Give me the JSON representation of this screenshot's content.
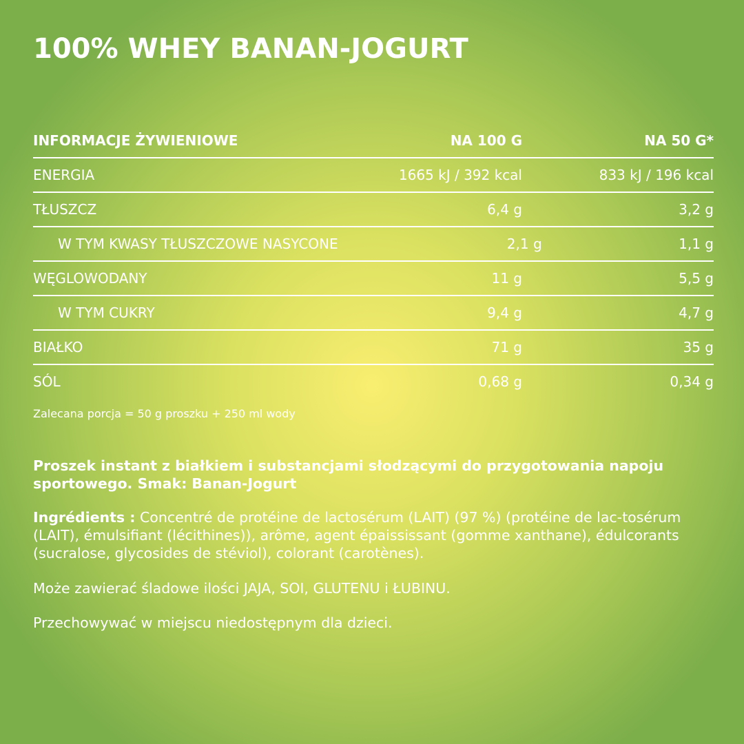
{
  "title": "100% WHEY BANAN-JOGURT",
  "table": {
    "headers": [
      "INFORMACJE ŻYWIENIOWE",
      "NA 100 G",
      "NA 50 G*"
    ],
    "rows": [
      {
        "label": "ENERGIA",
        "per100": "1665 kJ / 392 kcal",
        "per50": "833 kJ / 196 kcal",
        "sub": false
      },
      {
        "label": "TŁUSZCZ",
        "per100": "6,4 g",
        "per50": "3,2 g",
        "sub": false
      },
      {
        "label": "W TYM KWASY TŁUSZCZOWE NASYCONE",
        "per100": "2,1 g",
        "per50": "1,1 g",
        "sub": true
      },
      {
        "label": "WĘGLOWODANY",
        "per100": "11 g",
        "per50": "5,5 g",
        "sub": false
      },
      {
        "label": "W TYM CUKRY",
        "per100": "9,4 g",
        "per50": "4,7 g",
        "sub": true
      },
      {
        "label": "BIAŁKO",
        "per100": "71 g",
        "per50": "35 g",
        "sub": false
      },
      {
        "label": "SÓL",
        "per100": "0,68 g",
        "per50": "0,34 g",
        "sub": false
      }
    ]
  },
  "serving_note": "Zalecana porcja = 50 g proszku + 250 ml wody",
  "description": "Proszek instant z białkiem i substancjami słodzącymi do przygotowania napoju sportowego. Smak: Banan-Jogurt",
  "ingredients_label": "Ingrédients :",
  "ingredients": " Concentré de protéine de lactosérum (LAIT) (97 %) (protéine de lac-tosérum (LAIT), émulsifiant (lécithines)), arôme, agent épaississant (gomme xanthane), édulcorants (sucralose, glycosides de stéviol), colorant (carotènes).",
  "allergens": "Może zawierać śladowe ilości JAJA, SOI, GLUTENU i ŁUBINU.",
  "storage": "Przechowywać w miejscu niedostępnym dla dzieci."
}
